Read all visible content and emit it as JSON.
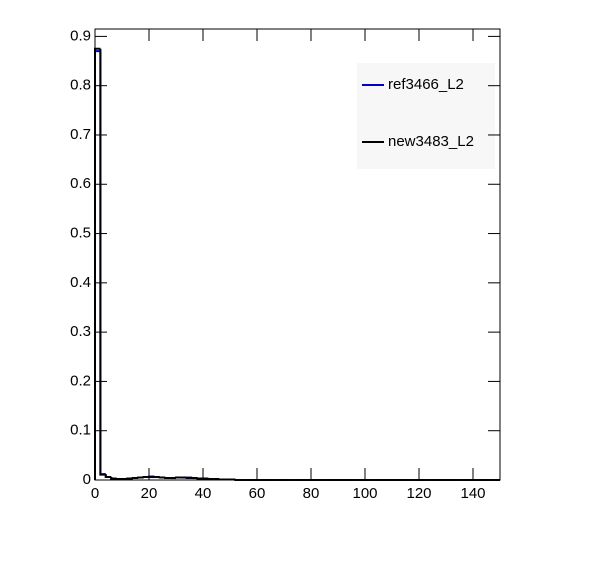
{
  "chart_data": {
    "type": "histogram",
    "bins": [
      0,
      2,
      4,
      6,
      8,
      10,
      12,
      14,
      16,
      18,
      20,
      22,
      24,
      26,
      28,
      30,
      32,
      34,
      36,
      38,
      40,
      42,
      44,
      46,
      48,
      50,
      52,
      54,
      56,
      58,
      60,
      62,
      64,
      66,
      68,
      70,
      72,
      74,
      76,
      78,
      80,
      82,
      84,
      86,
      88,
      90,
      92,
      94,
      96,
      98,
      100,
      102,
      104,
      106,
      108,
      110,
      112,
      114,
      116,
      118,
      120,
      122,
      124,
      126,
      128,
      130,
      132,
      134,
      136,
      138,
      140,
      142,
      144,
      146,
      148,
      150
    ],
    "series": [
      {
        "name": "ref3466_L2",
        "color": "#0000cc",
        "values": [
          0.87,
          0.012,
          0.006,
          0.003,
          0.002,
          0.002,
          0.003,
          0.004,
          0.005,
          0.006,
          0.007,
          0.006,
          0.005,
          0.004,
          0.004,
          0.005,
          0.005,
          0.005,
          0.004,
          0.003,
          0.003,
          0.002,
          0.002,
          0.001,
          0.001,
          0.001,
          0,
          0,
          0,
          0,
          0,
          0,
          0,
          0,
          0,
          0,
          0,
          0,
          0,
          0,
          0,
          0,
          0,
          0,
          0,
          0,
          0,
          0,
          0,
          0,
          0,
          0,
          0,
          0,
          0,
          0,
          0,
          0,
          0,
          0,
          0,
          0,
          0,
          0,
          0,
          0,
          0,
          0,
          0,
          0,
          0,
          0,
          0,
          0,
          0
        ]
      },
      {
        "name": "new3483_L2",
        "color": "#000000",
        "values": [
          0.875,
          0.011,
          0.006,
          0.003,
          0.002,
          0.002,
          0.003,
          0.004,
          0.005,
          0.006,
          0.006,
          0.006,
          0.005,
          0.004,
          0.004,
          0.005,
          0.005,
          0.004,
          0.004,
          0.003,
          0.003,
          0.002,
          0.002,
          0.001,
          0.001,
          0.001,
          0,
          0,
          0,
          0,
          0,
          0,
          0,
          0,
          0,
          0,
          0,
          0,
          0,
          0,
          0,
          0,
          0,
          0,
          0,
          0,
          0,
          0,
          0,
          0,
          0,
          0,
          0,
          0,
          0,
          0,
          0,
          0,
          0,
          0,
          0,
          0,
          0,
          0,
          0,
          0,
          0,
          0,
          0,
          0,
          0,
          0,
          0,
          0,
          0
        ]
      }
    ],
    "xlim": [
      0,
      150
    ],
    "xticks": [
      0,
      20,
      40,
      60,
      80,
      100,
      120,
      140
    ],
    "ylim": [
      0,
      0.915
    ],
    "yticks": [
      0,
      0.1,
      0.2,
      0.3,
      0.4,
      0.5,
      0.6,
      0.7,
      0.8,
      0.9
    ],
    "legend": "top-right"
  }
}
